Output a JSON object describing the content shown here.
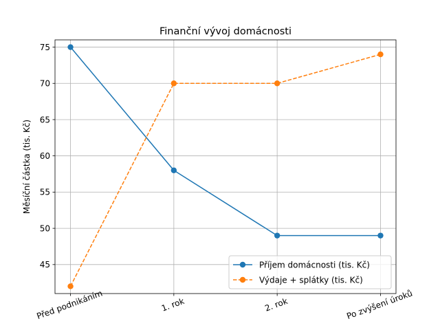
{
  "chart_data": {
    "type": "line",
    "title": "Finanční vývoj domácnosti",
    "xlabel": "",
    "ylabel": "Měsíční částka (tis. Kč)",
    "categories": [
      "Před podnikáním",
      "1. rok",
      "2. rok",
      "Po zvýšení úroků"
    ],
    "ylim": [
      41,
      76
    ],
    "yticks": [
      45,
      50,
      55,
      60,
      65,
      70,
      75
    ],
    "grid": true,
    "legend_position": "lower-right",
    "series": [
      {
        "name": "Příjem domácnosti (tis. Kč)",
        "values": [
          75,
          58,
          49,
          49
        ],
        "color": "#1f77b4",
        "style": "solid",
        "marker": "circle"
      },
      {
        "name": "Výdaje + splátky (tis. Kč)",
        "values": [
          42,
          70,
          70,
          74
        ],
        "color": "#ff7f0e",
        "style": "dashed",
        "marker": "circle"
      }
    ]
  }
}
